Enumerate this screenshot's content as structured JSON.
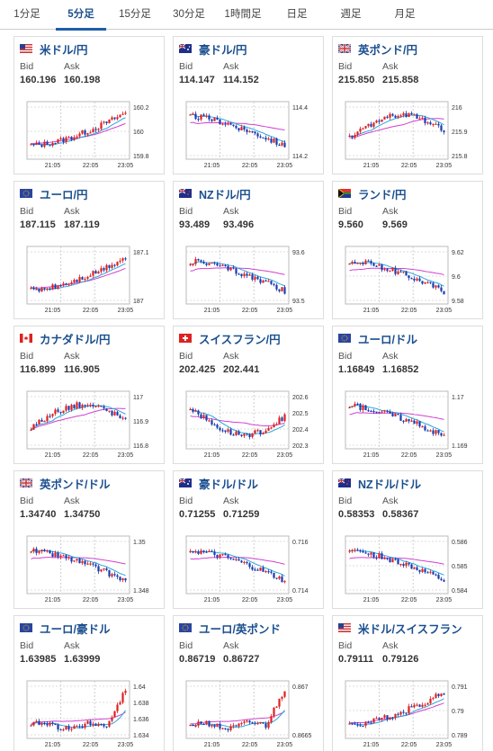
{
  "tabs": [
    "1分足",
    "5分足",
    "15分足",
    "30分足",
    "1時間足",
    "日足",
    "週足",
    "月足"
  ],
  "active_tab": 1,
  "x_labels": [
    "21:05",
    "22:05",
    "23:05"
  ],
  "bid_label": "Bid",
  "ask_label": "Ask",
  "pairs": [
    {
      "name": "米ドル/円",
      "flag": "us",
      "bid": "160.196",
      "ask": "160.198",
      "y_ticks": [
        "160.2",
        "160",
        "159.8"
      ],
      "trend": "up"
    },
    {
      "name": "豪ドル/円",
      "flag": "au",
      "bid": "114.147",
      "ask": "114.152",
      "y_ticks": [
        "114.4",
        "114.2"
      ],
      "trend": "down"
    },
    {
      "name": "英ポンド/円",
      "flag": "uk",
      "bid": "215.850",
      "ask": "215.858",
      "y_ticks": [
        "216",
        "215.9",
        "215.8"
      ],
      "trend": "hump"
    },
    {
      "name": "ユーロ/円",
      "flag": "eu",
      "bid": "187.115",
      "ask": "187.119",
      "y_ticks": [
        "187.1",
        "187"
      ],
      "trend": "up"
    },
    {
      "name": "NZドル/円",
      "flag": "nz",
      "bid": "93.489",
      "ask": "93.496",
      "y_ticks": [
        "93.6",
        "93.5"
      ],
      "trend": "down"
    },
    {
      "name": "ランド/円",
      "flag": "za",
      "bid": "9.560",
      "ask": "9.569",
      "y_ticks": [
        "9.62",
        "9.6",
        "9.58"
      ],
      "trend": "down"
    },
    {
      "name": "カナダドル/円",
      "flag": "ca",
      "bid": "116.899",
      "ask": "116.905",
      "y_ticks": [
        "117",
        "116.9",
        "116.8"
      ],
      "trend": "hump"
    },
    {
      "name": "スイスフラン/円",
      "flag": "ch",
      "bid": "202.425",
      "ask": "202.441",
      "y_ticks": [
        "202.6",
        "202.5",
        "202.4",
        "202.3"
      ],
      "trend": "dip"
    },
    {
      "name": "ユーロ/ドル",
      "flag": "eu",
      "bid": "1.16849",
      "ask": "1.16852",
      "y_ticks": [
        "1.17",
        "1.169"
      ],
      "trend": "down"
    },
    {
      "name": "英ポンド/ドル",
      "flag": "uk",
      "bid": "1.34740",
      "ask": "1.34750",
      "y_ticks": [
        "1.35",
        "1.348"
      ],
      "trend": "down"
    },
    {
      "name": "豪ドル/ドル",
      "flag": "au",
      "bid": "0.71255",
      "ask": "0.71259",
      "y_ticks": [
        "0.716",
        "0.714"
      ],
      "trend": "down"
    },
    {
      "name": "NZドル/ドル",
      "flag": "nz",
      "bid": "0.58353",
      "ask": "0.58367",
      "y_ticks": [
        "0.586",
        "0.585",
        "0.584"
      ],
      "trend": "down"
    },
    {
      "name": "ユーロ/豪ドル",
      "flag": "eu",
      "bid": "1.63985",
      "ask": "1.63999",
      "y_ticks": [
        "1.64",
        "1.638",
        "1.636",
        "1.634"
      ],
      "trend": "spike"
    },
    {
      "name": "ユーロ/英ポンド",
      "flag": "eu",
      "bid": "0.86719",
      "ask": "0.86727",
      "y_ticks": [
        "0.867",
        "0.8665"
      ],
      "trend": "spike"
    },
    {
      "name": "米ドル/スイスフラン",
      "flag": "us",
      "bid": "0.79111",
      "ask": "0.79126",
      "y_ticks": [
        "0.791",
        "0.79",
        "0.789"
      ],
      "trend": "up"
    }
  ]
}
